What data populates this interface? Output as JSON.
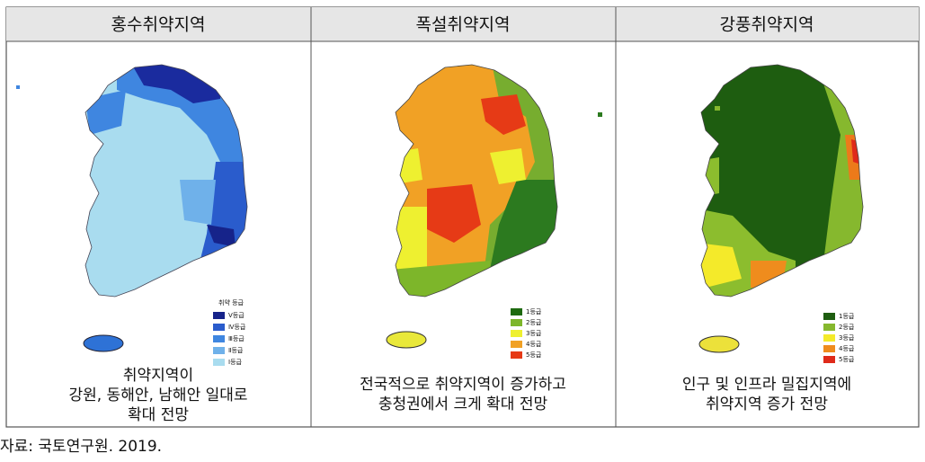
{
  "table": {
    "headers": [
      "홍수취약지역",
      "폭설취약지역",
      "강풍취약지역"
    ],
    "cells": [
      {
        "legend_title": "취약 등급",
        "legend": [
          "Ⅴ등급",
          "Ⅳ등급",
          "Ⅲ등급",
          "Ⅱ등급",
          "Ⅰ등급"
        ],
        "caption": [
          "취약지역이",
          "강원, 동해안, 남해안 일대로",
          "확대 전망"
        ]
      },
      {
        "legend": [
          "1등급",
          "2등급",
          "3등급",
          "4등급",
          "5등급"
        ],
        "caption": [
          "전국적으로 취약지역이 증가하고",
          "충청권에서 크게 확대 전망"
        ]
      },
      {
        "legend": [
          "1등급",
          "2등급",
          "3등급",
          "4등급",
          "5등급"
        ],
        "caption": [
          "인구 및 인프라 밀집지역에",
          "취약지역 증가 전망"
        ]
      }
    ]
  },
  "source": "자료: 국토연구원. 2019."
}
